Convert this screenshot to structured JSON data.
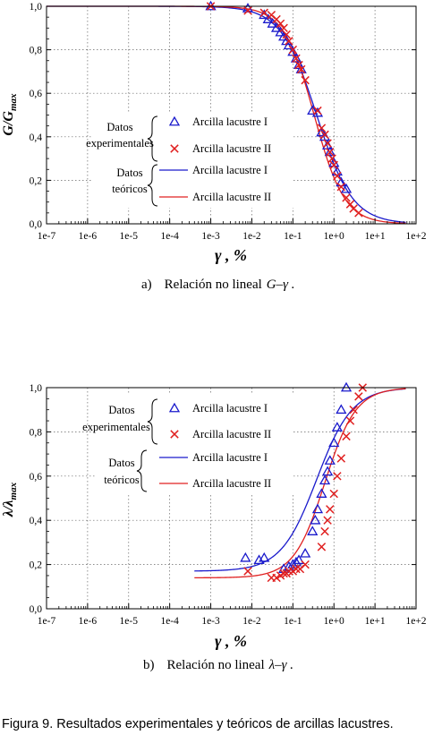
{
  "chart_data": [
    {
      "type": "scatter",
      "id": "a",
      "caption_prefix": "a)",
      "caption_text": "Relación no lineal",
      "caption_math": "G–γ .",
      "ylabel_main": "G/G",
      "ylabel_sub": "max",
      "xlabel": "γ , %",
      "xscale": "log",
      "xlim": [
        1e-07,
        100
      ],
      "ylim": [
        0,
        1
      ],
      "xticks": [
        "1e-7",
        "1e-6",
        "1e-5",
        "1e-4",
        "1e-3",
        "1e-2",
        "1e-1",
        "1e+0",
        "1e+1",
        "1e+2"
      ],
      "yticks": [
        "0,0",
        "0,2",
        "0,4",
        "0,6",
        "0,8",
        "1,0"
      ],
      "grid": true,
      "legend": {
        "group_exp": [
          "Datos",
          "experimentales"
        ],
        "group_teo": [
          "Datos",
          "teóricos"
        ],
        "entries": [
          "Arcilla lacustre I",
          "Arcilla lacustre II",
          "Arcilla lacustre I",
          "Arcilla lacustre II"
        ]
      },
      "colors": {
        "series1": "#1a1acc",
        "series2": "#e02020"
      },
      "series": [
        {
          "name": "Arcilla lacustre I",
          "kind": "data",
          "marker": "triangle",
          "color": "#1a1acc",
          "x": [
            0.001,
            0.008,
            0.02,
            0.025,
            0.032,
            0.04,
            0.05,
            0.06,
            0.07,
            0.08,
            0.1,
            0.12,
            0.14,
            0.16,
            0.3,
            0.4,
            0.5,
            0.6,
            0.7,
            0.8,
            1.0,
            1.2,
            1.5,
            2.0
          ],
          "y": [
            1.0,
            0.99,
            0.96,
            0.94,
            0.92,
            0.9,
            0.88,
            0.86,
            0.84,
            0.82,
            0.79,
            0.76,
            0.73,
            0.71,
            0.52,
            0.51,
            0.42,
            0.4,
            0.36,
            0.33,
            0.28,
            0.24,
            0.19,
            0.16
          ]
        },
        {
          "name": "Arcilla lacustre II",
          "kind": "data",
          "marker": "x",
          "color": "#e02020",
          "x": [
            0.001,
            0.008,
            0.02,
            0.03,
            0.04,
            0.05,
            0.06,
            0.07,
            0.08,
            0.1,
            0.12,
            0.14,
            0.16,
            0.2,
            0.4,
            0.5,
            0.6,
            0.7,
            0.8,
            0.9,
            1.0,
            1.2,
            1.5,
            2.0,
            2.5,
            3.0,
            4.0
          ],
          "y": [
            1.0,
            0.98,
            0.97,
            0.96,
            0.94,
            0.92,
            0.9,
            0.87,
            0.84,
            0.8,
            0.76,
            0.73,
            0.71,
            0.66,
            0.52,
            0.44,
            0.41,
            0.37,
            0.33,
            0.3,
            0.27,
            0.22,
            0.17,
            0.12,
            0.09,
            0.07,
            0.05
          ]
        },
        {
          "name": "Arcilla lacustre I",
          "kind": "curve",
          "color": "#1a1acc",
          "ref": 0.38,
          "curv": 1.0
        },
        {
          "name": "Arcilla lacustre II",
          "kind": "curve",
          "color": "#e02020",
          "ref": 0.33,
          "curv": 1.18
        }
      ]
    },
    {
      "type": "scatter",
      "id": "b",
      "caption_prefix": "b)",
      "caption_text": "Relación no lineal",
      "caption_math": "λ–γ .",
      "ylabel_main": "λ/λ",
      "ylabel_sub": "max",
      "xlabel": "γ , %",
      "xscale": "log",
      "xlim": [
        1e-07,
        100
      ],
      "ylim": [
        0,
        1
      ],
      "xticks": [
        "1e-7",
        "1e-6",
        "1e-5",
        "1e-4",
        "1e-3",
        "1e-2",
        "1e-1",
        "1e+0",
        "1e+1",
        "1e+2"
      ],
      "yticks": [
        "0,0",
        "0,2",
        "0,4",
        "0,6",
        "0,8",
        "1,0"
      ],
      "grid": true,
      "legend": {
        "group_exp": [
          "Datos",
          "experimentales"
        ],
        "group_teo": [
          "Datos",
          "teóricos"
        ],
        "entries": [
          "Arcilla lacustre I",
          "Arcilla lacustre II",
          "Arcilla lacustre I",
          "Arcilla lacustre II"
        ]
      },
      "colors": {
        "series1": "#1a1acc",
        "series2": "#e02020"
      },
      "series": [
        {
          "name": "Arcilla lacustre I",
          "kind": "data",
          "marker": "triangle",
          "color": "#1a1acc",
          "x": [
            0.007,
            0.015,
            0.02,
            0.06,
            0.08,
            0.1,
            0.12,
            0.14,
            0.2,
            0.3,
            0.35,
            0.4,
            0.5,
            0.6,
            0.7,
            0.8,
            1.0,
            1.2,
            1.5,
            2.0
          ],
          "y": [
            0.23,
            0.22,
            0.23,
            0.18,
            0.19,
            0.2,
            0.21,
            0.22,
            0.25,
            0.35,
            0.4,
            0.45,
            0.52,
            0.58,
            0.62,
            0.67,
            0.75,
            0.82,
            0.9,
            1.0
          ]
        },
        {
          "name": "Arcilla lacustre II",
          "kind": "data",
          "marker": "x",
          "color": "#e02020",
          "x": [
            0.008,
            0.03,
            0.04,
            0.05,
            0.06,
            0.07,
            0.08,
            0.1,
            0.12,
            0.15,
            0.2,
            0.5,
            0.6,
            0.7,
            0.8,
            1.0,
            1.2,
            1.5,
            2.0,
            2.5,
            3.0,
            4.0,
            5.0
          ],
          "y": [
            0.17,
            0.14,
            0.14,
            0.15,
            0.16,
            0.16,
            0.17,
            0.17,
            0.18,
            0.18,
            0.2,
            0.28,
            0.35,
            0.4,
            0.45,
            0.52,
            0.6,
            0.68,
            0.78,
            0.85,
            0.9,
            0.96,
            1.0
          ]
        },
        {
          "name": "Arcilla lacustre I",
          "kind": "curve",
          "color": "#1a1acc",
          "ref": 0.38,
          "curv": 1.0,
          "ymin": 0.17,
          "xstart": 0.0004
        },
        {
          "name": "Arcilla lacustre II",
          "kind": "curve",
          "color": "#e02020",
          "ref": 0.6,
          "curv": 1.15,
          "ymin": 0.14,
          "xstart": 0.0004
        }
      ]
    }
  ],
  "figure_caption": "Figura 9. Resultados experimentales y teóricos de arcillas lacustres."
}
